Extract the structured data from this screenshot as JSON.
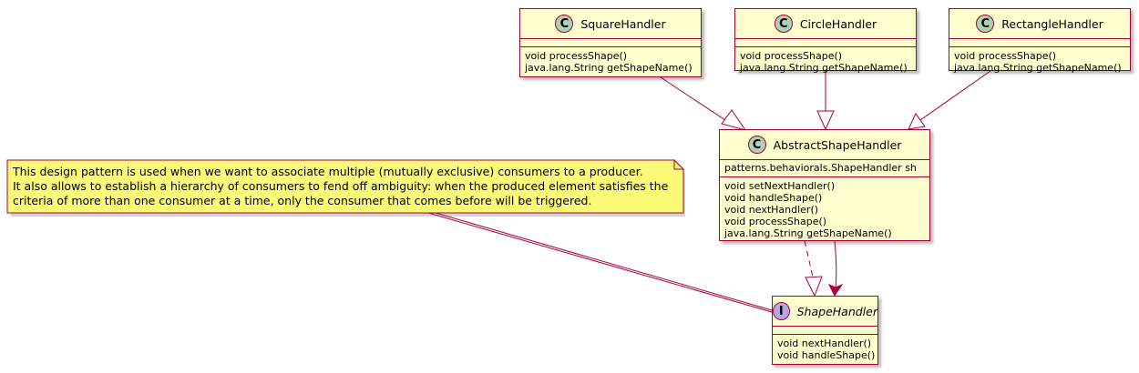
{
  "colors": {
    "class_fill": "#FEFECE",
    "border": "#A80036",
    "class_badge": "#ADD1B2",
    "interface_badge": "#B4A7E5",
    "note_fill": "#FBFB77"
  },
  "classes": {
    "square": {
      "badge": "C",
      "name": "SquareHandler",
      "methods": [
        "void processShape()",
        "java.lang.String getShapeName()"
      ]
    },
    "circle": {
      "badge": "C",
      "name": "CircleHandler",
      "methods": [
        "void processShape()",
        "java.lang.String getShapeName()"
      ]
    },
    "rectangle": {
      "badge": "C",
      "name": "RectangleHandler",
      "methods": [
        "void processShape()",
        "java.lang.String getShapeName()"
      ]
    },
    "abstract": {
      "badge": "C",
      "name": "AbstractShapeHandler",
      "fields": [
        "patterns.behaviorals.ShapeHandler sh"
      ],
      "methods": [
        "void setNextHandler()",
        "void handleShape()",
        "void nextHandler()",
        "void processShape()",
        "java.lang.String getShapeName()"
      ]
    },
    "iface": {
      "badge": "I",
      "name": "ShapeHandler",
      "methods": [
        "void nextHandler()",
        "void handleShape()"
      ]
    }
  },
  "note": {
    "lines": [
      "This design pattern is used when we want to associate multiple (mutually exclusive) consumers to a producer.",
      "It also allows to establish a hierarchy of consumers to fend off ambiguity: when the produced element satisfies the",
      "criteria of more than one consumer at a time, only the consumer that comes before will be triggered."
    ]
  }
}
